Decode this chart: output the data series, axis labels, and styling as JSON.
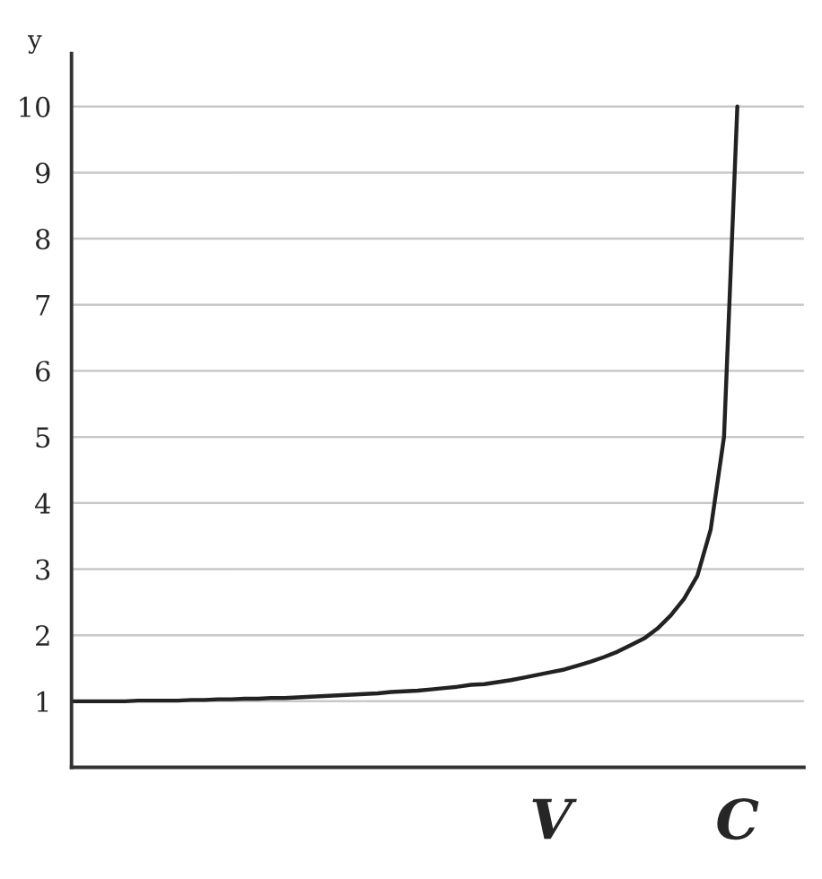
{
  "chart_data": {
    "type": "line",
    "ylabel": "y",
    "categories": [
      null,
      null,
      null,
      null,
      null,
      null,
      null,
      null,
      null,
      null,
      null,
      null,
      null,
      null,
      null,
      null,
      null,
      null,
      null,
      null,
      null,
      null,
      null,
      null,
      null,
      null,
      null,
      null,
      null,
      null,
      null,
      null,
      null,
      null,
      null,
      null,
      "V",
      null,
      null,
      null,
      null,
      null,
      null,
      null,
      null,
      null,
      null,
      null,
      null,
      null,
      "C"
    ],
    "series": [
      {
        "color": "#222222",
        "values": [
          1,
          1,
          1,
          1,
          1,
          1.01,
          1.01,
          1.01,
          1.01,
          1.02,
          1.02,
          1.03,
          1.03,
          1.04,
          1.04,
          1.05,
          1.05,
          1.06,
          1.07,
          1.08,
          1.09,
          1.1,
          1.11,
          1.12,
          1.14,
          1.15,
          1.16,
          1.18,
          1.2,
          1.22,
          1.25,
          1.26,
          1.29,
          1.32,
          1.36,
          1.4,
          1.44,
          1.48,
          1.54,
          1.6,
          1.67,
          1.75,
          1.85,
          1.95,
          2.1,
          2.3,
          2.55,
          2.9,
          3.6,
          5,
          10
        ]
      }
    ],
    "ylim": [
      0,
      10.8
    ],
    "yticks": [
      1,
      2,
      3,
      4,
      5,
      6,
      7,
      8,
      9,
      10
    ],
    "grid": "y",
    "marker": "none",
    "line_style": "solid"
  }
}
